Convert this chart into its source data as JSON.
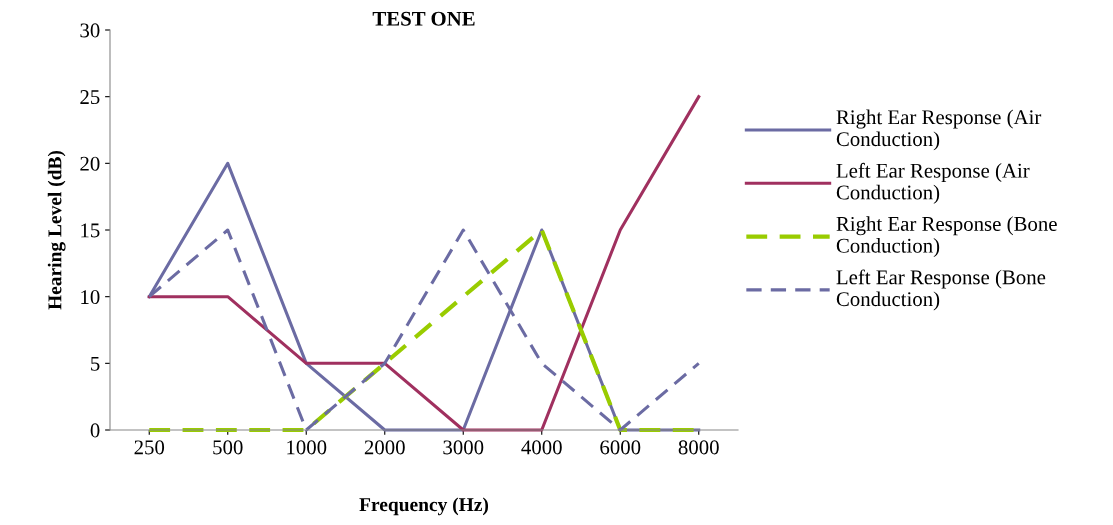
{
  "chart_data": {
    "type": "line",
    "title": "TEST ONE",
    "xlabel": "Frequency (Hz)",
    "ylabel": "Hearing Level (dB)",
    "categories": [
      "250",
      "500",
      "1000",
      "2000",
      "3000",
      "4000",
      "6000",
      "8000"
    ],
    "series": [
      {
        "name": "Right Ear Response (Air Conduction)",
        "color": "#6b6ba3",
        "line_style": "solid",
        "values": [
          10,
          20,
          5,
          0,
          0,
          15,
          0,
          0
        ]
      },
      {
        "name": "Left Ear Response (Air Conduction)",
        "color": "#a0305f",
        "line_style": "solid",
        "values": [
          10,
          10,
          5,
          5,
          0,
          0,
          15,
          25
        ]
      },
      {
        "name": "Right Ear Response (Bone Conduction)",
        "color": "#99cc00",
        "line_style": "dashed",
        "values": [
          0,
          0,
          0,
          5,
          10,
          15,
          0,
          0
        ]
      },
      {
        "name": "Left Ear Response (Bone Conduction)",
        "color": "#6b6ba3",
        "line_style": "dashed",
        "values": [
          10,
          15,
          0,
          5,
          15,
          5,
          0,
          5
        ]
      }
    ],
    "ylim": [
      0,
      30
    ],
    "yticks": [
      0,
      5,
      10,
      15,
      20,
      25,
      30
    ],
    "grid": false,
    "legend": "right",
    "marker": "none"
  }
}
